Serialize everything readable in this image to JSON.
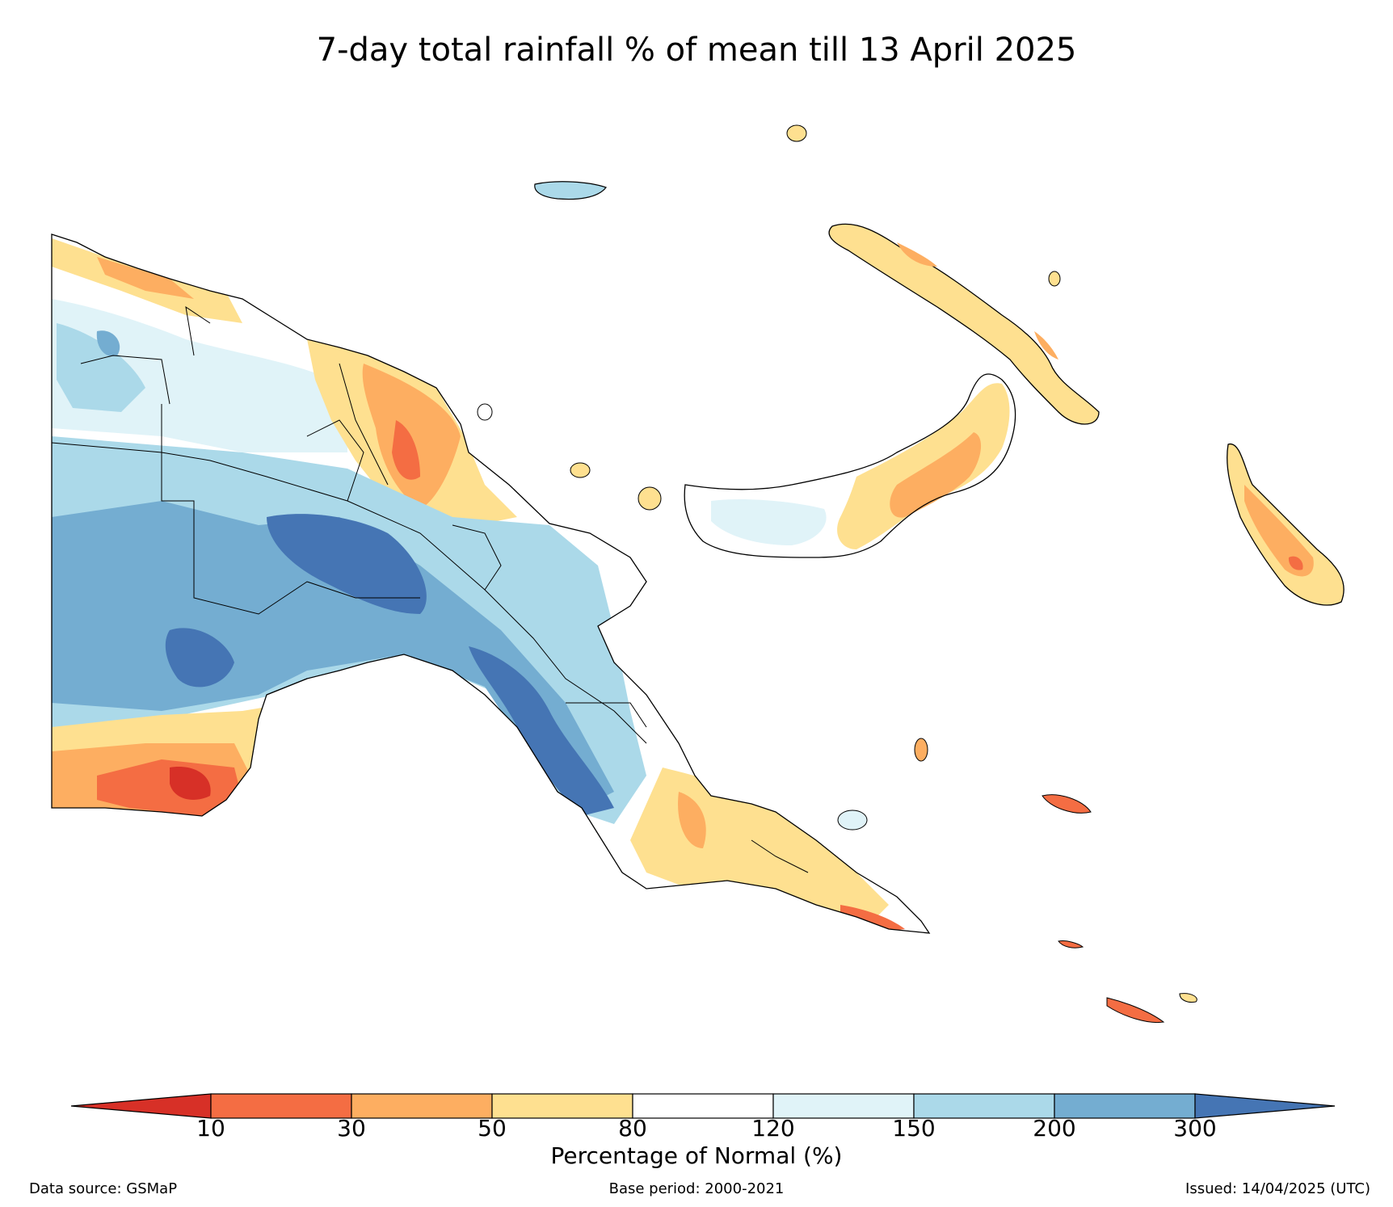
{
  "title": "7-day total rainfall % of mean till 13 April 2025",
  "colors": {
    "lt10": "#d73027",
    "c10_30": "#f46d43",
    "c30_50": "#fdae61",
    "c50_80": "#fee090",
    "c80_120": "#ffffff",
    "c120_150": "#e0f3f8",
    "c150_200": "#abd9e9",
    "c200_300": "#74add1",
    "gt300": "#4575b4",
    "border": "#000000"
  },
  "colorbar": {
    "ticks": [
      "10",
      "30",
      "50",
      "80",
      "120",
      "150",
      "200",
      "300"
    ],
    "label": "Percentage of Normal (%)"
  },
  "footer": {
    "data_source": "Data source: GSMaP",
    "base_period": "Base period: 2000-2021",
    "issued": "Issued: 14/04/2025 (UTC)"
  }
}
